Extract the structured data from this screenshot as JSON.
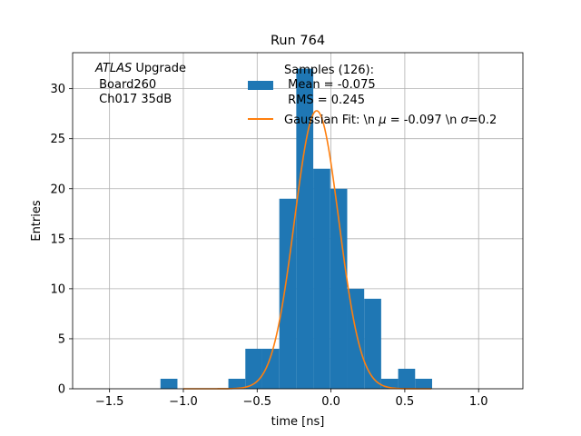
{
  "chart_data": {
    "type": "bar",
    "title": "Run 764",
    "xlabel": "time [ns]",
    "ylabel": "Entries",
    "xlim": [
      -1.75,
      1.3
    ],
    "ylim": [
      0,
      33.6
    ],
    "grid": true,
    "x_ticks": [
      -1.5,
      -1.0,
      -0.5,
      0.0,
      0.5,
      1.0
    ],
    "x_tick_labels": [
      "−1.5",
      "−1.0",
      "−0.5",
      "0.0",
      "0.5",
      "1.0"
    ],
    "y_ticks": [
      0,
      5,
      10,
      15,
      20,
      25,
      30
    ],
    "y_tick_labels": [
      "0",
      "5",
      "10",
      "15",
      "20",
      "25",
      "30"
    ],
    "annotation": {
      "italic_part": "ATLAS",
      "line1_rest": " Upgrade",
      "line2": " Board260",
      "line3": " Ch017 35dB"
    },
    "histogram": {
      "color": "#1f77b4",
      "bins": [
        {
          "x0": -1.155,
          "x1": -1.04,
          "count": 1
        },
        {
          "x0": -0.695,
          "x1": -0.58,
          "count": 1
        },
        {
          "x0": -0.58,
          "x1": -0.465,
          "count": 4
        },
        {
          "x0": -0.465,
          "x1": -0.35,
          "count": 4
        },
        {
          "x0": -0.35,
          "x1": -0.235,
          "count": 19
        },
        {
          "x0": -0.235,
          "x1": -0.12,
          "count": 32
        },
        {
          "x0": -0.12,
          "x1": -0.005,
          "count": 22
        },
        {
          "x0": -0.005,
          "x1": 0.11,
          "count": 20
        },
        {
          "x0": 0.11,
          "x1": 0.225,
          "count": 10
        },
        {
          "x0": 0.225,
          "x1": 0.34,
          "count": 9
        },
        {
          "x0": 0.34,
          "x1": 0.455,
          "count": 1
        },
        {
          "x0": 0.455,
          "x1": 0.57,
          "count": 2
        },
        {
          "x0": 0.57,
          "x1": 0.685,
          "count": 1
        }
      ]
    },
    "fit": {
      "color": "#ff7f0e",
      "amplitude": 27.8,
      "mu": -0.097,
      "sigma": 0.15,
      "x_range": [
        -1.0,
        0.68
      ]
    },
    "legend": {
      "placement": "upper center",
      "entries": [
        {
          "kind": "patch",
          "color": "#1f77b4",
          "lines": [
            "Samples (126):",
            " Mean = -0.075",
            " RMS = 0.245"
          ]
        },
        {
          "kind": "line",
          "color": "#ff7f0e",
          "prefix": "Gaussian Fit: \\n ",
          "mu_symbol": "μ",
          "mu_text": " = -0.097 \\n ",
          "sigma_symbol": "σ",
          "sigma_text": "=0.2"
        }
      ]
    }
  }
}
